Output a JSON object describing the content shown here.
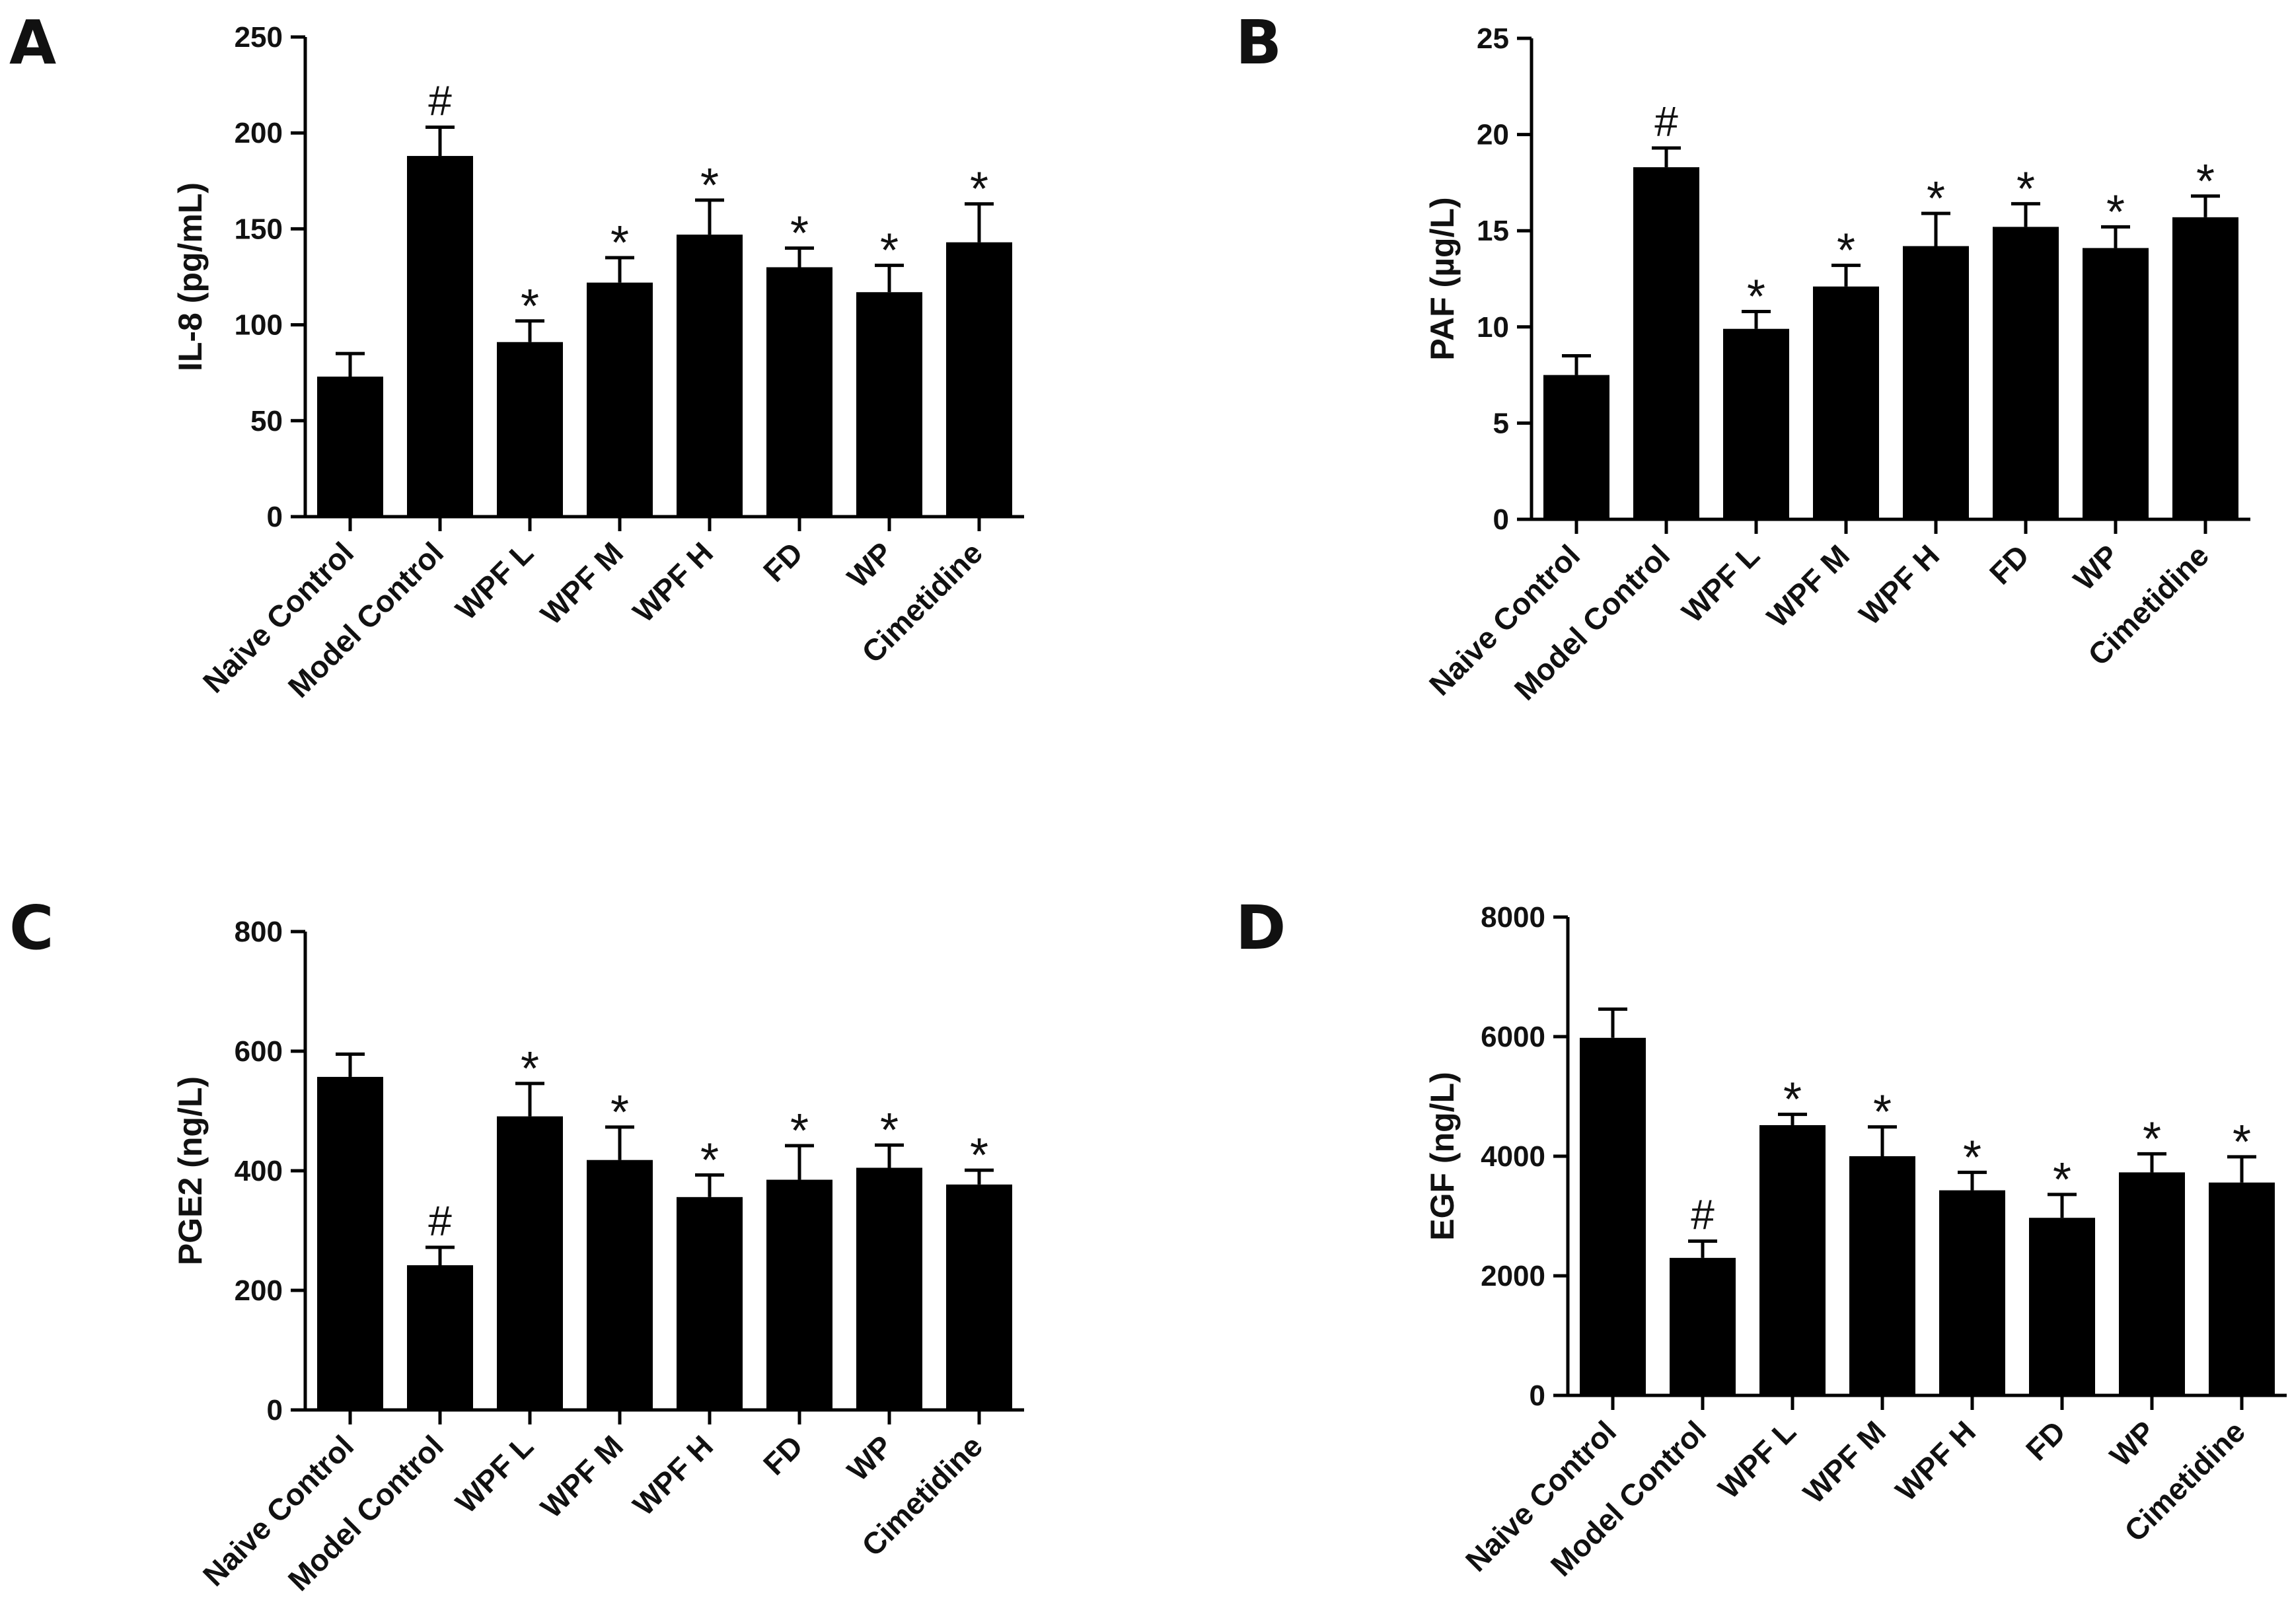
{
  "chart_data": [
    {
      "type": "bar",
      "panel": "A",
      "ylabel": "IL-8 (pg/mL)",
      "categories": [
        "Naive Control",
        "Model Control",
        "WPF L",
        "WPF M",
        "WPF H",
        "FD",
        "WP",
        "Cimetidine"
      ],
      "values": [
        73,
        188,
        91,
        122,
        147,
        130,
        117,
        143
      ],
      "errors": [
        12,
        15,
        11,
        13,
        18,
        10,
        14,
        20
      ],
      "significance": [
        "",
        "#",
        "*",
        "*",
        "*",
        "*",
        "*",
        "*"
      ],
      "ylim": [
        0,
        250
      ],
      "yticks": [
        0,
        50,
        100,
        150,
        200,
        250
      ]
    },
    {
      "type": "bar",
      "panel": "B",
      "ylabel": "PAF (µg/L)",
      "categories": [
        "Naive Control",
        "Model Control",
        "WPF L",
        "WPF M",
        "WPF H",
        "FD",
        "WP",
        "Cimetidine"
      ],
      "values": [
        7.5,
        18.3,
        9.9,
        12.1,
        14.2,
        15.2,
        14.1,
        15.7
      ],
      "errors": [
        1.0,
        1.0,
        0.9,
        1.1,
        1.7,
        1.2,
        1.1,
        1.1
      ],
      "significance": [
        "",
        "#",
        "*",
        "*",
        "*",
        "*",
        "*",
        "*"
      ],
      "ylim": [
        0,
        25
      ],
      "yticks": [
        0,
        5,
        10,
        15,
        20,
        25
      ]
    },
    {
      "type": "bar",
      "panel": "C",
      "ylabel": "PGE2 (ng/L)",
      "categories": [
        "Naive Control",
        "Model Control",
        "WPF L",
        "WPF M",
        "WPF H",
        "FD",
        "WP",
        "Cimetidine"
      ],
      "values": [
        557,
        242,
        491,
        418,
        356,
        385,
        405,
        377
      ],
      "errors": [
        38,
        30,
        55,
        55,
        37,
        57,
        38,
        24
      ],
      "significance": [
        "",
        "#",
        "*",
        "*",
        "*",
        "*",
        "*",
        "*"
      ],
      "ylim": [
        0,
        800
      ],
      "yticks": [
        0,
        200,
        400,
        600,
        800
      ]
    },
    {
      "type": "bar",
      "panel": "D",
      "ylabel": "EGF (ng/L)",
      "categories": [
        "Naive Control",
        "Model Control",
        "WPF L",
        "WPF M",
        "WPF H",
        "FD",
        "WP",
        "Cimetidine"
      ],
      "values": [
        5980,
        2300,
        4520,
        4000,
        3430,
        2970,
        3730,
        3560
      ],
      "errors": [
        480,
        280,
        180,
        490,
        300,
        390,
        310,
        430
      ],
      "significance": [
        "",
        "#",
        "*",
        "*",
        "*",
        "*",
        "*",
        "*"
      ],
      "ylim": [
        0,
        8000
      ],
      "yticks": [
        0,
        2000,
        4000,
        6000,
        8000
      ]
    }
  ],
  "colors": {
    "bar": "#000000",
    "axis": "#000000",
    "text": "#111111"
  }
}
